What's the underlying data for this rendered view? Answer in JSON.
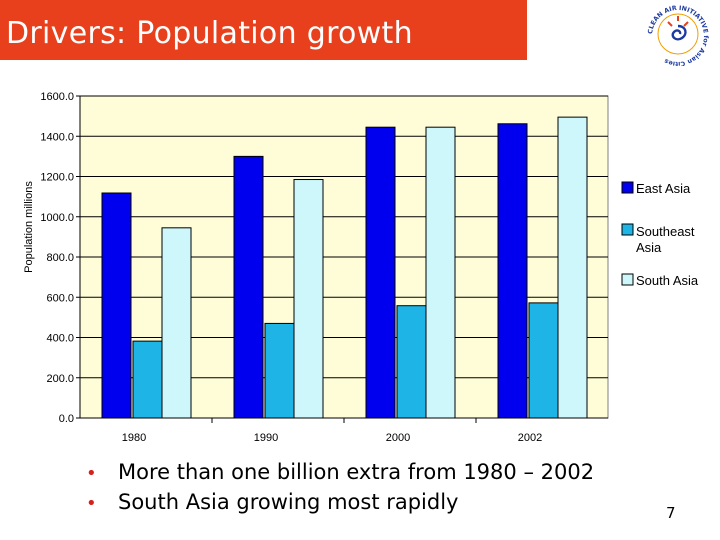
{
  "header": {
    "title": "Drivers: Population growth"
  },
  "logo": {
    "icon": "clean-air-initiative-logo",
    "ring_text": "CLEAN AIR INITIATIVE for Asian Cities"
  },
  "colors": {
    "title_bg": "#e8401c",
    "east_asia": "#0000ee",
    "southeast_asia": "#1eb4e6",
    "south_asia": "#cdf7fb",
    "plot_bg": "#fefdd8",
    "bullet": "#d42020"
  },
  "chart_data": {
    "type": "bar",
    "categories": [
      "1980",
      "1990",
      "2000",
      "2002"
    ],
    "series": [
      {
        "name": "East Asia",
        "values": [
          1118,
          1300,
          1445,
          1462
        ]
      },
      {
        "name": "Southeast Asia",
        "values": [
          382,
          470,
          558,
          572
        ]
      },
      {
        "name": "South Asia",
        "values": [
          945,
          1185,
          1445,
          1495
        ]
      }
    ],
    "title": "",
    "xlabel": "",
    "ylabel": "Population millions",
    "ylim": [
      0,
      1600
    ],
    "yticks": [
      "0.0",
      "200.0",
      "400.0",
      "600.0",
      "800.0",
      "1000.0",
      "1200.0",
      "1400.0",
      "1600.0"
    ],
    "grid": true,
    "legend": "right"
  },
  "bullets": [
    "More than one billion extra from 1980 – 2002",
    "South Asia growing most rapidly"
  ],
  "bullet_symbol": "•",
  "page_number": "7"
}
